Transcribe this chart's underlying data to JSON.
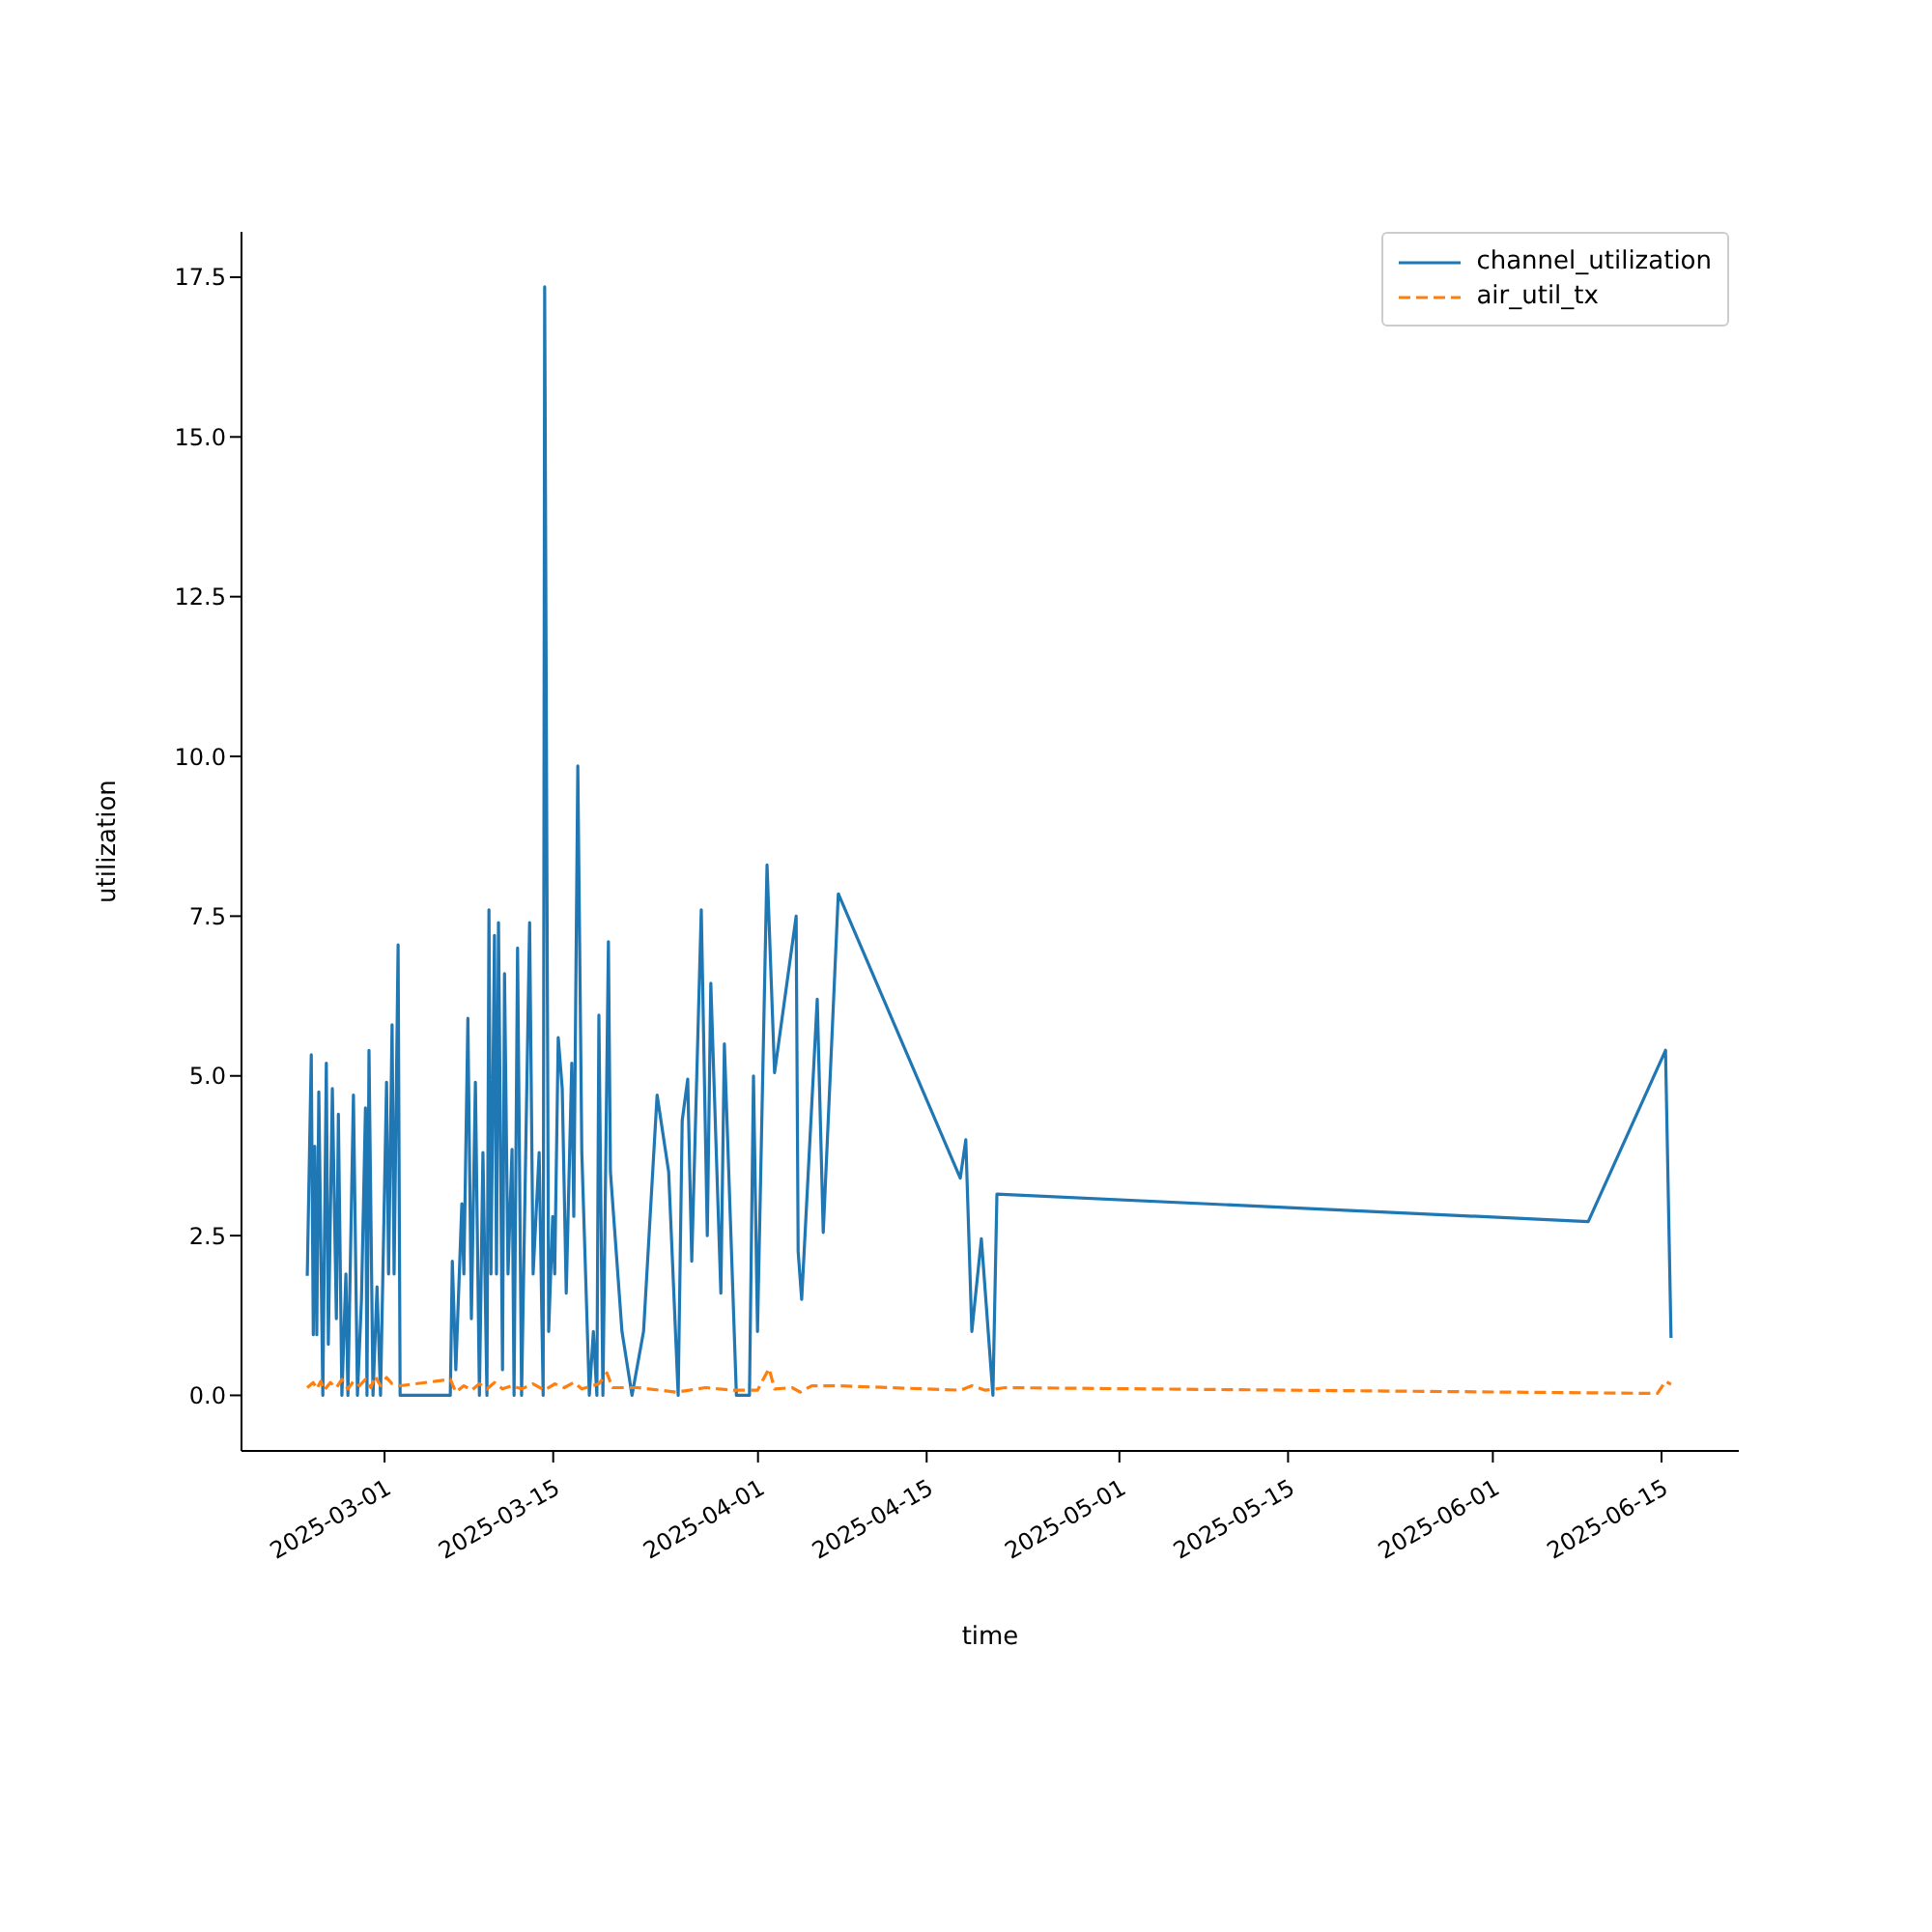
{
  "chart_data": {
    "type": "line",
    "xlabel": "time",
    "ylabel": "utilization",
    "grid": false,
    "legend": "top right",
    "marker": "none",
    "xlim": [
      "2025-02-17T03:00",
      "2025-06-21T10:00"
    ],
    "xticks": [
      "2025-03-01",
      "2025-03-15",
      "2025-04-01",
      "2025-04-15",
      "2025-05-01",
      "2025-05-15",
      "2025-06-01",
      "2025-06-15"
    ],
    "ylim": [
      -0.87,
      18.21
    ],
    "yticks": [
      {
        "value": 0,
        "label": "0.0"
      },
      {
        "value": 2.5,
        "label": "2.5"
      },
      {
        "value": 5,
        "label": "5.0"
      },
      {
        "value": 7.5,
        "label": "7.5"
      },
      {
        "value": 10,
        "label": "10.0"
      },
      {
        "value": 12.5,
        "label": "12.5"
      },
      {
        "value": 15,
        "label": "15.0"
      },
      {
        "value": 17.5,
        "label": "17.5"
      }
    ],
    "series": [
      {
        "name": "channel_utilization",
        "color": "#1f77b4",
        "line_style": "solid",
        "x": [
          "2025-02-22T14:00",
          "2025-02-22T22:00",
          "2025-02-23T02:00",
          "2025-02-23T05:00",
          "2025-02-23T09:00",
          "2025-02-23T13:00",
          "2025-02-23T21:00",
          "2025-02-24T04:00",
          "2025-02-24T08:00",
          "2025-02-24T16:00",
          "2025-02-25T00:00",
          "2025-02-25T04:00",
          "2025-02-25T11:00",
          "2025-02-25T19:00",
          "2025-02-25T23:00",
          "2025-02-26T10:00",
          "2025-02-26T18:00",
          "2025-02-27T02:00",
          "2025-02-27T10:00",
          "2025-02-27T13:00",
          "2025-02-27T17:00",
          "2025-02-28T01:00",
          "2025-02-28T09:00",
          "2025-02-28T16:00",
          "2025-03-01T04:00",
          "2025-03-01T08:00",
          "2025-03-01T15:00",
          "2025-03-01T19:00",
          "2025-03-02T03:00",
          "2025-03-02T07:00",
          "2025-03-06T11:00",
          "2025-03-06T15:00",
          "2025-03-06T22:00",
          "2025-03-07T10:00",
          "2025-03-07T14:00",
          "2025-03-07T22:00",
          "2025-03-08T05:00",
          "2025-03-08T13:00",
          "2025-03-08T21:00",
          "2025-03-09T04:00",
          "2025-03-09T12:00",
          "2025-03-09T16:00",
          "2025-03-09T20:00",
          "2025-03-10T03:00",
          "2025-03-10T07:00",
          "2025-03-10T11:00",
          "2025-03-10T19:00",
          "2025-03-10T23:00",
          "2025-03-11T06:00",
          "2025-03-11T14:00",
          "2025-03-11T18:00",
          "2025-03-12T01:00",
          "2025-03-12T09:00",
          "2025-03-13T01:00",
          "2025-03-13T08:00",
          "2025-03-13T20:00",
          "2025-03-14T04:00",
          "2025-03-14T07:00",
          "2025-03-14T15:00",
          "2025-03-14T23:00",
          "2025-03-15T03:00",
          "2025-03-15T10:00",
          "2025-03-15T18:00",
          "2025-03-16T02:00",
          "2025-03-16T13:00",
          "2025-03-16T17:00",
          "2025-03-17T01:00",
          "2025-03-17T09:00",
          "2025-03-18T00:00",
          "2025-03-18T08:00",
          "2025-03-18T15:00",
          "2025-03-18T19:00",
          "2025-03-19T03:00",
          "2025-03-19T14:00",
          "2025-03-19T18:00",
          "2025-03-20T17:00",
          "2025-03-21T13:00",
          "2025-03-22T12:00",
          "2025-03-23T15:00",
          "2025-03-24T14:00",
          "2025-03-25T09:00",
          "2025-03-25T17:00",
          "2025-03-26T04:00",
          "2025-03-26T12:00",
          "2025-03-27T07:00",
          "2025-03-27T19:00",
          "2025-03-28T02:00",
          "2025-03-28T22:00",
          "2025-03-29T05:00",
          "2025-03-30T05:00",
          "2025-03-31T07:00",
          "2025-03-31T15:00",
          "2025-03-31T23:00",
          "2025-04-01T18:00",
          "2025-04-02T09:00",
          "2025-04-04T04:00",
          "2025-04-04T08:00",
          "2025-04-04T15:00",
          "2025-04-05T22:00",
          "2025-04-06T10:00",
          "2025-04-07T16:00",
          "2025-04-17T19:00",
          "2025-04-18T06:00",
          "2025-04-18T18:00",
          "2025-04-19T13:00",
          "2025-04-20T12:00",
          "2025-04-20T20:00",
          "2025-06-08T22:00",
          "2025-06-15T08:00",
          "2025-06-15T19:00"
        ],
        "values": [
          1.87,
          5.33,
          0.95,
          3.9,
          0.95,
          4.75,
          0.0,
          5.2,
          0.8,
          4.8,
          1.2,
          4.4,
          0.0,
          1.9,
          0.0,
          4.7,
          0.0,
          1.5,
          4.5,
          0.0,
          5.4,
          0.0,
          1.7,
          0.0,
          4.9,
          1.9,
          5.8,
          1.9,
          7.05,
          0.0,
          0.0,
          2.1,
          0.4,
          3.0,
          1.9,
          5.9,
          1.2,
          4.9,
          0.0,
          3.8,
          0.0,
          7.6,
          1.9,
          7.2,
          1.9,
          7.4,
          0.4,
          6.6,
          1.9,
          3.85,
          0.0,
          7.0,
          0.0,
          7.4,
          1.9,
          3.8,
          0.0,
          17.35,
          1.0,
          2.8,
          1.9,
          5.6,
          4.8,
          1.6,
          5.2,
          2.8,
          9.85,
          3.8,
          0.0,
          1.0,
          0.0,
          5.95,
          0.0,
          7.1,
          3.5,
          1.0,
          0.0,
          1.0,
          4.7,
          3.5,
          0.0,
          4.3,
          4.95,
          2.1,
          7.6,
          2.5,
          6.45,
          1.6,
          5.5,
          0.0,
          0.0,
          5.0,
          1.0,
          8.3,
          5.05,
          7.5,
          2.25,
          1.5,
          6.2,
          2.55,
          7.85,
          3.4,
          4.0,
          1.0,
          2.45,
          0.0,
          3.15,
          2.72,
          5.4,
          0.9
        ]
      },
      {
        "name": "air_util_tx",
        "color": "#ff7f0e",
        "line_style": "dashed",
        "x": [
          "2025-02-22T14:00",
          "2025-02-23T02:00",
          "2025-02-23T09:00",
          "2025-02-23T17:00",
          "2025-02-24T00:00",
          "2025-02-24T12:00",
          "2025-02-25T00:00",
          "2025-02-25T11:00",
          "2025-02-25T23:00",
          "2025-02-26T10:00",
          "2025-02-26T22:00",
          "2025-02-27T10:00",
          "2025-02-27T21:00",
          "2025-02-28T05:00",
          "2025-02-28T16:00",
          "2025-03-01T04:00",
          "2025-03-01T15:00",
          "2025-03-02T07:00",
          "2025-03-06T11:00",
          "2025-03-06T22:00",
          "2025-03-07T14:00",
          "2025-03-08T05:00",
          "2025-03-08T21:00",
          "2025-03-09T12:00",
          "2025-03-10T03:00",
          "2025-03-10T19:00",
          "2025-03-11T14:00",
          "2025-03-12T09:00",
          "2025-03-13T08:00",
          "2025-03-14T07:00",
          "2025-03-15T03:00",
          "2025-03-15T22:00",
          "2025-03-16T17:00",
          "2025-03-17T09:00",
          "2025-03-18T19:00",
          "2025-03-19T11:00",
          "2025-03-19T22:00",
          "2025-03-22T00:00",
          "2025-03-25T05:00",
          "2025-03-27T15:00",
          "2025-03-30T00:00",
          "2025-03-31T23:00",
          "2025-04-01T22:00",
          "2025-04-02T09:00",
          "2025-04-03T20:00",
          "2025-04-04T12:00",
          "2025-04-05T11:00",
          "2025-04-07T16:00",
          "2025-04-17T19:00",
          "2025-04-18T18:00",
          "2025-04-19T21:00",
          "2025-04-21T12:00",
          "2025-06-14T16:00",
          "2025-06-15T08:00",
          "2025-06-15T19:00"
        ],
        "values": [
          0.12,
          0.2,
          0.1,
          0.22,
          0.08,
          0.2,
          0.12,
          0.25,
          0.1,
          0.22,
          0.15,
          0.25,
          0.12,
          0.3,
          0.15,
          0.28,
          0.18,
          0.15,
          0.25,
          0.05,
          0.15,
          0.08,
          0.18,
          0.1,
          0.2,
          0.1,
          0.15,
          0.1,
          0.18,
          0.08,
          0.18,
          0.12,
          0.2,
          0.1,
          0.18,
          0.35,
          0.12,
          0.12,
          0.05,
          0.12,
          0.08,
          0.08,
          0.42,
          0.1,
          0.12,
          0.05,
          0.15,
          0.15,
          0.08,
          0.15,
          0.08,
          0.12,
          0.03,
          0.22,
          0.17
        ]
      }
    ]
  }
}
